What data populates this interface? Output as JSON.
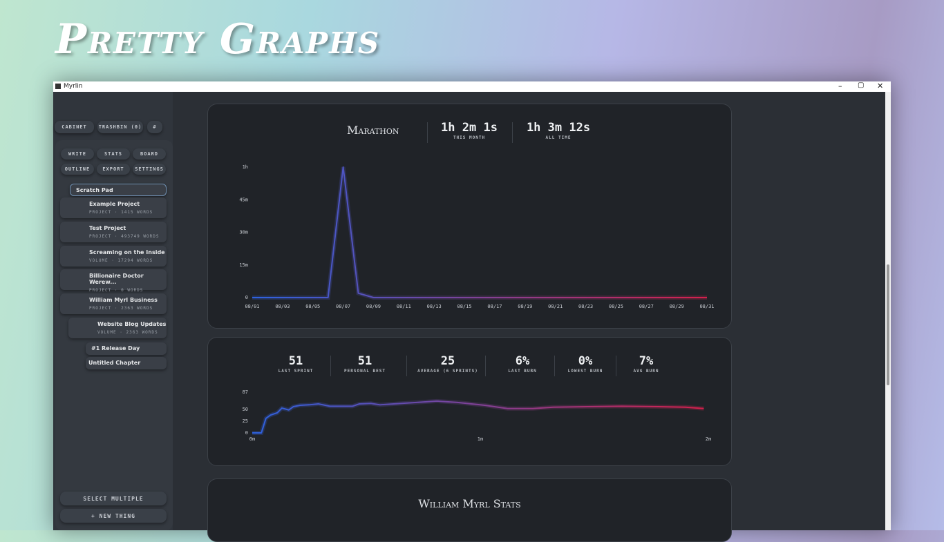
{
  "header": {
    "title": "Pretty Graphs"
  },
  "window": {
    "title": "Myrlin"
  },
  "sidebar": {
    "top_buttons": [
      "CABINET",
      "TRASHBIN (0)",
      "#"
    ],
    "tabs": [
      "WRITE",
      "STATS",
      "BOARD",
      "OUTLINE",
      "EXPORT",
      "SETTINGS"
    ],
    "scratch": "Scratch Pad",
    "items": [
      {
        "title": "Example Project",
        "meta": "PROJECT · 1415 WORDS"
      },
      {
        "title": "Test Project",
        "meta": "PROJECT · 493749 WORDS"
      },
      {
        "title": "Screaming on the Inside",
        "meta": "VOLUME · 17294 WORDS"
      },
      {
        "title": "Billionaire Doctor Werew...",
        "meta": "PROJECT · 0 WORDS"
      },
      {
        "title": "William Myrl Business",
        "meta": "PROJECT · 2363 WORDS"
      },
      {
        "title": "Website Blog Updates",
        "meta": "VOLUME · 2363 WORDS"
      }
    ],
    "chapters": [
      "#1 Release Day",
      "Untitled Chapter"
    ],
    "bottom_buttons": [
      "SELECT MULTIPLE",
      "+ NEW THING"
    ]
  },
  "marathon": {
    "title": "Marathon",
    "stats": [
      {
        "value": "1h 2m 1s",
        "label": "THIS MONTH"
      },
      {
        "value": "1h 3m 12s",
        "label": "ALL TIME"
      }
    ]
  },
  "sprints": {
    "stats": [
      {
        "value": "51",
        "label": "LAST SPRINT"
      },
      {
        "value": "51",
        "label": "PERSONAL BEST"
      },
      {
        "value": "25",
        "label": "AVERAGE (6 SPRINTS)"
      },
      {
        "value": "6%",
        "label": "LAST BURN"
      },
      {
        "value": "0%",
        "label": "LOWEST BURN"
      },
      {
        "value": "7%",
        "label": "AVG BURN"
      }
    ]
  },
  "stats_card": {
    "title": "William Myrl Stats"
  },
  "chart_data": [
    {
      "type": "line",
      "categories": [
        "08/01",
        null,
        "08/03",
        null,
        "08/05",
        null,
        "08/07",
        null,
        "08/09",
        null,
        "08/11",
        null,
        "08/13",
        null,
        "08/15",
        null,
        "08/17",
        null,
        "08/19",
        null,
        "08/21",
        null,
        "08/23",
        null,
        "08/25",
        null,
        "08/27",
        null,
        "08/29",
        null,
        "08/31"
      ],
      "values": [
        0,
        0,
        0,
        0,
        0,
        0,
        60,
        2,
        0,
        0,
        0,
        0,
        0,
        0,
        0,
        0,
        0,
        0,
        0,
        0,
        0,
        0,
        0,
        0,
        0,
        0,
        0,
        0,
        0,
        0,
        0
      ],
      "ylim": [
        0,
        60
      ],
      "yticks": [
        0,
        {
          "value": 15,
          "label": "15m"
        },
        {
          "value": 30,
          "label": "30m"
        },
        {
          "value": 45,
          "label": "45m"
        },
        {
          "value": 60,
          "label": "1h"
        }
      ],
      "gradient": [
        "#2d62e0",
        "#d4204c"
      ]
    },
    {
      "type": "line",
      "x": [
        0,
        0.04,
        0.06,
        0.08,
        0.11,
        0.13,
        0.16,
        0.18,
        0.21,
        0.25,
        0.29,
        0.34,
        0.38,
        0.44,
        0.47,
        0.52,
        0.56,
        0.62,
        0.72,
        0.81,
        0.9,
        1.02,
        1.12,
        1.23,
        1.32,
        1.47,
        1.62,
        1.78,
        1.9,
        1.98
      ],
      "values": [
        0,
        0,
        31,
        38,
        43,
        53,
        49,
        56,
        59,
        60,
        62,
        57,
        57,
        57,
        62,
        63,
        60,
        62,
        65,
        68,
        65,
        59,
        52,
        52,
        55,
        56,
        57,
        56,
        55,
        52
      ],
      "xlim": [
        0,
        2
      ],
      "xticks": [
        {
          "value": 0,
          "label": "0m"
        },
        {
          "value": 1,
          "label": "1m"
        },
        {
          "value": 2,
          "label": "2m"
        }
      ],
      "ylim": [
        0,
        87
      ],
      "yticks": [
        0,
        25,
        50,
        87
      ],
      "gradient": [
        "#2d62e0",
        "#d4204c"
      ]
    }
  ]
}
